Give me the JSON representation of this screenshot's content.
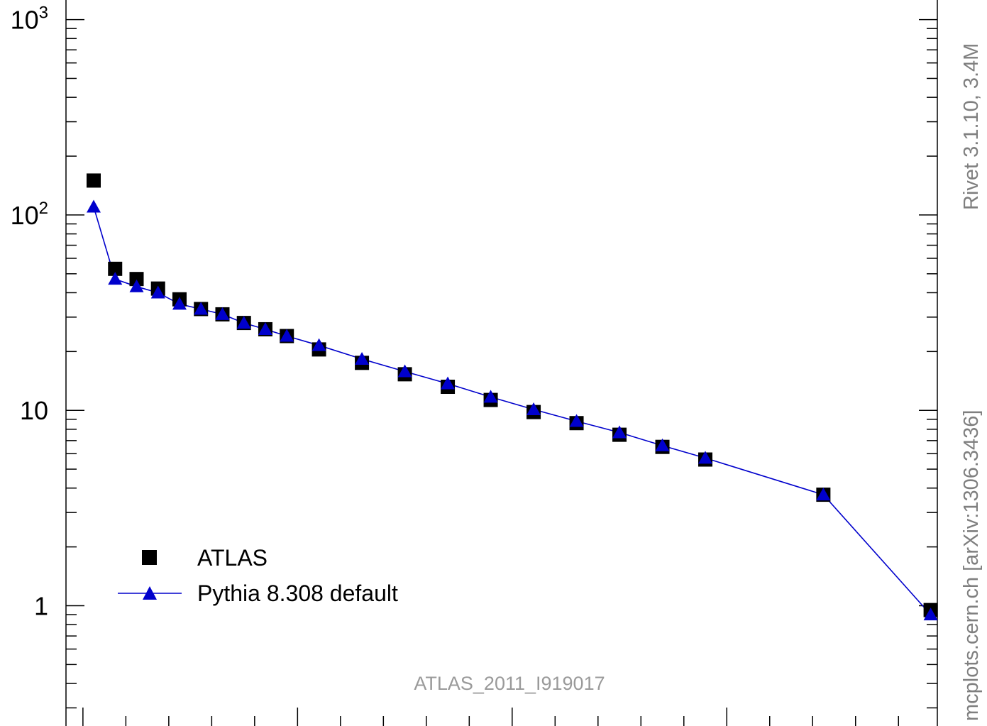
{
  "chart_data": {
    "type": "scatter",
    "yscale": "log",
    "ylim": [
      0.3,
      1200
    ],
    "xlim": [
      0,
      20.3
    ],
    "grid": false,
    "legend_position": "bottom-left",
    "yticks": [
      {
        "value": 1000,
        "base": "10",
        "exp": "3"
      },
      {
        "value": 100,
        "base": "10",
        "exp": "2"
      },
      {
        "value": 10,
        "base": "10",
        "exp": ""
      },
      {
        "value": 1,
        "base": "1",
        "exp": ""
      }
    ],
    "series": [
      {
        "name": "ATLAS",
        "marker": "square",
        "color": "#000000",
        "x": [
          0.25,
          0.75,
          1.25,
          1.75,
          2.25,
          2.75,
          3.25,
          3.75,
          4.25,
          4.75,
          5.5,
          6.5,
          7.5,
          8.5,
          9.5,
          10.5,
          11.5,
          12.5,
          13.5,
          14.5,
          15.5,
          17.25,
          19.75
        ],
        "values": [
          150,
          53,
          47,
          42,
          37,
          33,
          31,
          28,
          26,
          24,
          20.5,
          17.5,
          15.3,
          13.2,
          11.3,
          9.8,
          8.6,
          7.5,
          6.5,
          5.6,
          null,
          3.7,
          0.95
        ]
      },
      {
        "name": "Pythia 8.308 default",
        "marker": "triangle",
        "line": true,
        "color": "#0000cc",
        "x": [
          0.25,
          0.75,
          1.25,
          1.75,
          2.25,
          2.75,
          3.25,
          3.75,
          4.25,
          4.75,
          5.5,
          6.5,
          7.5,
          8.5,
          9.5,
          10.5,
          11.5,
          12.5,
          13.5,
          14.5,
          17.25,
          19.75
        ],
        "values": [
          110,
          47,
          43,
          40,
          35,
          33,
          31,
          28,
          26,
          24,
          21.5,
          18.3,
          15.8,
          13.7,
          11.7,
          10.1,
          8.8,
          7.7,
          6.6,
          5.7,
          3.7,
          0.9
        ]
      }
    ],
    "watermark": "ATLAS_2011_I919017",
    "side_labels": {
      "upper": "Rivet 3.1.10,  3.4M",
      "lower": "mcplots.cern.ch [arXiv:1306.3436]"
    }
  }
}
